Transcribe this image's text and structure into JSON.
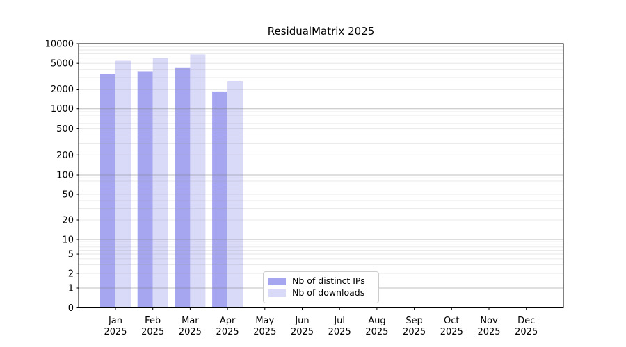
{
  "title": "ResidualMatrix 2025",
  "chart_data": {
    "type": "bar",
    "title": "ResidualMatrix 2025",
    "year_label": "2025",
    "categories": [
      "Jan",
      "Feb",
      "Mar",
      "Apr",
      "May",
      "Jun",
      "Jul",
      "Aug",
      "Sep",
      "Oct",
      "Nov",
      "Dec"
    ],
    "series": [
      {
        "name": "Nb of distinct IPs",
        "color": "#a6a6f0",
        "values": [
          3400,
          3700,
          4250,
          1840,
          null,
          null,
          null,
          null,
          null,
          null,
          null,
          null
        ]
      },
      {
        "name": "Nb of downloads",
        "color": "#d9d9f8",
        "values": [
          5480,
          6050,
          6850,
          2650,
          null,
          null,
          null,
          null,
          null,
          null,
          null,
          null
        ]
      }
    ],
    "y_ticks": [
      0,
      1,
      2,
      5,
      10,
      20,
      50,
      100,
      200,
      500,
      1000,
      2000,
      5000,
      10000
    ],
    "y_scale": "symlog",
    "ylim": [
      0,
      10000
    ],
    "grid": "on",
    "legend_position": "inside-bottom-center",
    "colors": {
      "major_grid": "#c0c0c0",
      "minor_grid": "#e7e7e7",
      "axis": "#000000",
      "background": "#ffffff"
    }
  }
}
